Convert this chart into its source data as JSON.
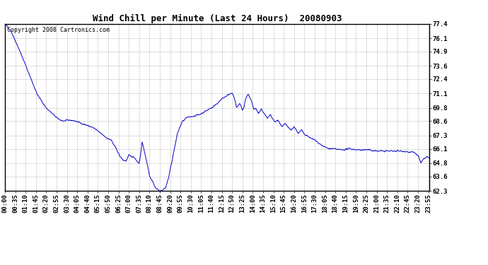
{
  "title": "Wind Chill per Minute (Last 24 Hours)  20080903",
  "copyright_text": "Copyright 2008 Cartronics.com",
  "line_color": "#0000cc",
  "background_color": "#ffffff",
  "grid_color": "#c0c0c0",
  "yticks": [
    62.3,
    63.6,
    64.8,
    66.1,
    67.3,
    68.6,
    69.8,
    71.1,
    72.4,
    73.6,
    74.9,
    76.1,
    77.4
  ],
  "ylim": [
    62.3,
    77.4
  ],
  "xtick_labels": [
    "00:00",
    "00:35",
    "01:10",
    "01:45",
    "02:20",
    "02:55",
    "03:30",
    "04:05",
    "04:40",
    "05:15",
    "05:50",
    "06:25",
    "07:00",
    "07:35",
    "08:10",
    "08:45",
    "09:20",
    "09:55",
    "10:30",
    "11:05",
    "11:40",
    "12:15",
    "12:50",
    "13:25",
    "14:00",
    "14:35",
    "15:10",
    "15:45",
    "16:20",
    "16:55",
    "17:30",
    "18:05",
    "18:40",
    "19:15",
    "19:50",
    "20:25",
    "21:00",
    "21:35",
    "22:10",
    "22:45",
    "23:20",
    "23:55"
  ],
  "total_minutes": 1440,
  "tick_interval": 35,
  "title_fontsize": 9,
  "tick_fontsize": 6.5,
  "copyright_fontsize": 6
}
